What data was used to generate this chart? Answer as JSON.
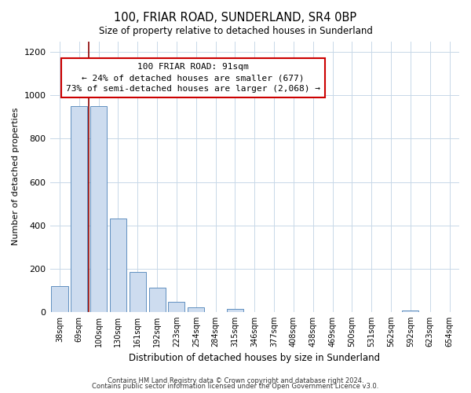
{
  "title": "100, FRIAR ROAD, SUNDERLAND, SR4 0BP",
  "subtitle": "Size of property relative to detached houses in Sunderland",
  "xlabel": "Distribution of detached houses by size in Sunderland",
  "ylabel": "Number of detached properties",
  "bar_labels": [
    "38sqm",
    "69sqm",
    "100sqm",
    "130sqm",
    "161sqm",
    "192sqm",
    "223sqm",
    "254sqm",
    "284sqm",
    "315sqm",
    "346sqm",
    "377sqm",
    "408sqm",
    "438sqm",
    "469sqm",
    "500sqm",
    "531sqm",
    "562sqm",
    "592sqm",
    "623sqm",
    "654sqm"
  ],
  "bar_values": [
    120,
    950,
    950,
    430,
    185,
    113,
    47,
    20,
    0,
    15,
    0,
    0,
    0,
    0,
    0,
    0,
    0,
    0,
    8,
    0,
    0
  ],
  "bar_color": "#cddcef",
  "bar_edge_color": "#6090c0",
  "vline_color": "#8b0000",
  "annotation_line1": "100 FRIAR ROAD: 91sqm",
  "annotation_line2": "← 24% of detached houses are smaller (677)",
  "annotation_line3": "73% of semi-detached houses are larger (2,068) →",
  "annotation_box_edge": "#cc0000",
  "ylim": [
    0,
    1250
  ],
  "yticks": [
    0,
    200,
    400,
    600,
    800,
    1000,
    1200
  ],
  "footer1": "Contains HM Land Registry data © Crown copyright and database right 2024.",
  "footer2": "Contains public sector information licensed under the Open Government Licence v3.0.",
  "grid_color": "#c8d8e8",
  "fig_width": 6.0,
  "fig_height": 5.0,
  "dpi": 100
}
